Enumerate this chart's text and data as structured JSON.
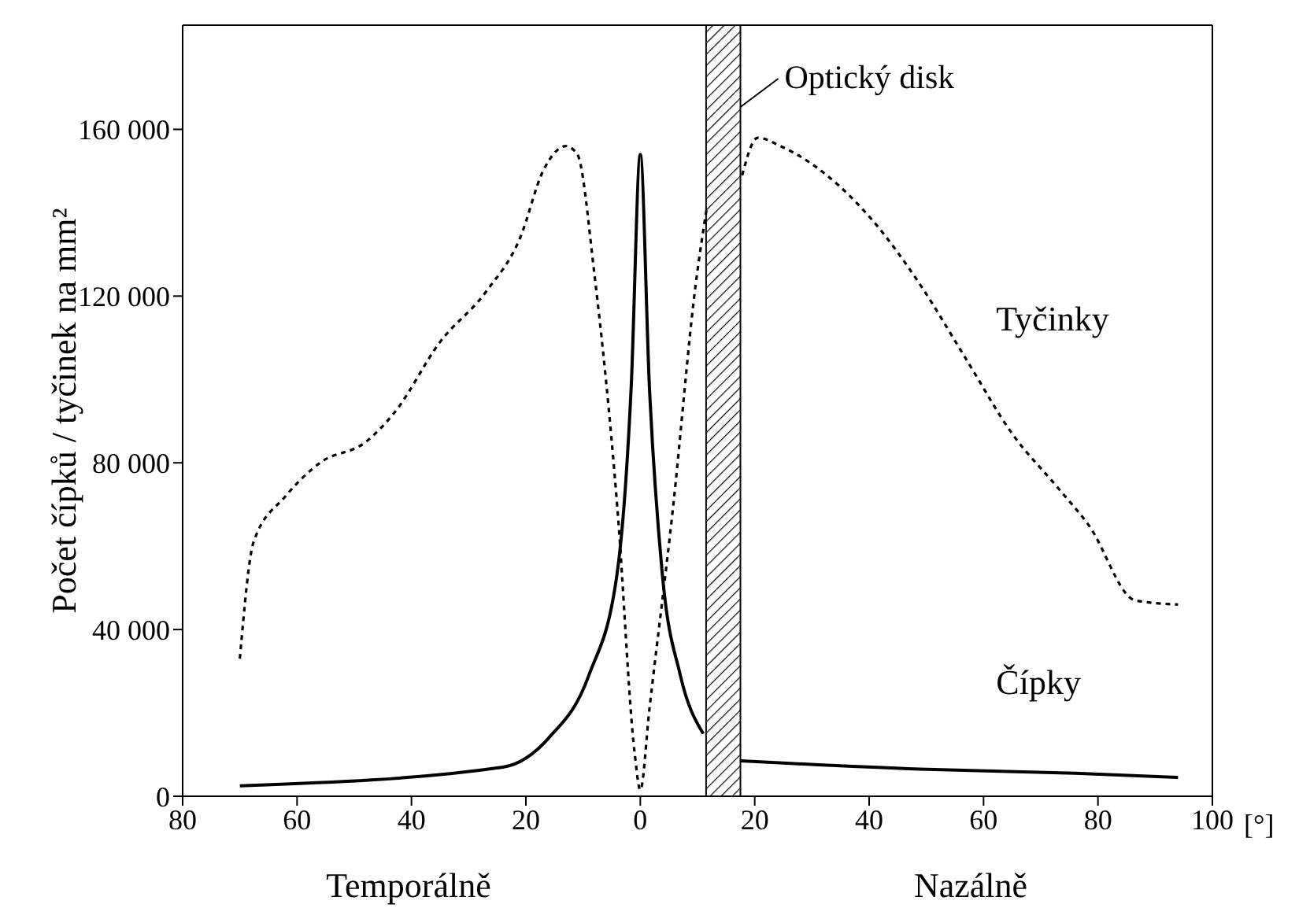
{
  "chart_data": {
    "type": "line",
    "ylabel": "Počet čípků / tyčinek na mm²",
    "xlabel": "[°]",
    "xlim": [
      -80,
      100
    ],
    "xticks": [
      {
        "value": -80,
        "label": "80"
      },
      {
        "value": -60,
        "label": "60"
      },
      {
        "value": -40,
        "label": "40"
      },
      {
        "value": -20,
        "label": "20"
      },
      0,
      20,
      40,
      60,
      80,
      100
    ],
    "ylim": [
      0,
      185000
    ],
    "yticks": [
      0,
      {
        "value": 40000,
        "label": "40 000"
      },
      {
        "value": 80000,
        "label": "80 000"
      },
      {
        "value": 120000,
        "label": "120 000"
      },
      {
        "value": 160000,
        "label": "160 000"
      }
    ],
    "marker": "none",
    "bands": [
      {
        "axis": "x",
        "from": 11.5,
        "to": 17.5,
        "label": "Optický disk",
        "color": "#000000"
      }
    ],
    "annotations": [
      "Temporálně",
      "Nazálně"
    ],
    "series": [
      {
        "name": "Tyčinky",
        "color": "#000000",
        "line_style": "dotted",
        "x": [
          -70,
          -67.6,
          -62,
          -56,
          -48,
          -43,
          -35,
          -27,
          -21,
          -17,
          -13,
          -11,
          -8,
          -4,
          -1,
          0,
          1.6,
          5.7,
          9.7,
          11.6,
          null,
          17.8,
          20.5,
          24.5,
          32.6,
          40.7,
          48.8,
          56.9,
          65,
          73,
          78.4,
          86.5,
          94
        ],
        "values": [
          33000,
          61000,
          72000,
          80000,
          85000,
          92000,
          109000,
          121000,
          134000,
          150000,
          156000,
          154000,
          125000,
          69000,
          10500,
          1500,
          21000,
          69000,
          123000,
          141000,
          null,
          149000,
          158000,
          156000,
          149000,
          138000,
          123000,
          105000,
          87000,
          74000,
          65000,
          47000,
          46000
        ]
      },
      {
        "name": "Čípky",
        "color": "#000000",
        "line_style": "solid",
        "x": [
          -70,
          -24,
          -16,
          -9,
          -4,
          -1.6,
          0,
          1.6,
          3.8,
          7,
          11,
          null,
          17.5,
          48.8,
          76,
          94
        ],
        "values": [
          2500,
          7000,
          14000,
          29000,
          54000,
          98000,
          154000,
          98000,
          54000,
          29000,
          15000,
          null,
          8500,
          6500,
          5500,
          4500
        ]
      }
    ]
  }
}
